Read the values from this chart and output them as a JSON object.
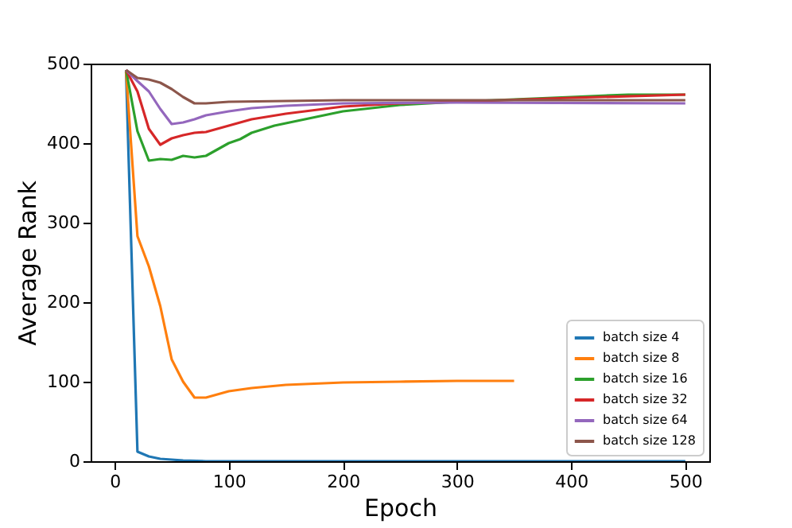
{
  "chart_data": {
    "type": "line",
    "xlabel": "Epoch",
    "ylabel": "Average Rank",
    "xlim": [
      -21,
      521
    ],
    "ylim": [
      0,
      500
    ],
    "xticks": [
      0,
      100,
      200,
      300,
      400,
      500
    ],
    "yticks": [
      0,
      100,
      200,
      300,
      400,
      500
    ],
    "grid": false,
    "legend": "bottom right",
    "series": [
      {
        "name": "batch size 4",
        "color": "#1f77b4",
        "x": [
          10,
          20,
          30,
          40,
          50,
          60,
          80,
          100,
          200,
          300,
          400,
          500
        ],
        "values": [
          490,
          12,
          6,
          3,
          2,
          1,
          0,
          0,
          0,
          0,
          0,
          0
        ]
      },
      {
        "name": "batch size 8",
        "color": "#ff7f0e",
        "x": [
          10,
          20,
          30,
          40,
          50,
          60,
          70,
          80,
          90,
          100,
          120,
          150,
          200,
          250,
          300,
          350
        ],
        "values": [
          490,
          283,
          245,
          195,
          128,
          100,
          80,
          80,
          84,
          88,
          92,
          96,
          99,
          100,
          101,
          101
        ]
      },
      {
        "name": "batch size 16",
        "color": "#2ca02c",
        "x": [
          10,
          20,
          30,
          40,
          50,
          60,
          70,
          80,
          90,
          100,
          110,
          120,
          140,
          160,
          200,
          250,
          300,
          350,
          400,
          450,
          500
        ],
        "values": [
          492,
          415,
          378,
          380,
          379,
          384,
          382,
          384,
          392,
          400,
          405,
          413,
          422,
          428,
          440,
          448,
          452,
          455,
          458,
          461,
          461
        ]
      },
      {
        "name": "batch size 32",
        "color": "#d62728",
        "x": [
          10,
          20,
          30,
          40,
          50,
          60,
          70,
          80,
          100,
          120,
          150,
          200,
          250,
          300,
          400,
          500
        ],
        "values": [
          492,
          465,
          418,
          398,
          406,
          410,
          413,
          414,
          422,
          430,
          437,
          446,
          450,
          452,
          457,
          461
        ]
      },
      {
        "name": "batch size 64",
        "color": "#9467bd",
        "x": [
          10,
          20,
          30,
          40,
          50,
          60,
          70,
          80,
          100,
          120,
          150,
          200,
          300,
          500
        ],
        "values": [
          492,
          478,
          465,
          443,
          424,
          426,
          430,
          435,
          440,
          444,
          447,
          450,
          451,
          450
        ]
      },
      {
        "name": "batch size 128",
        "color": "#8c564b",
        "x": [
          10,
          20,
          30,
          40,
          50,
          60,
          70,
          80,
          100,
          150,
          200,
          300,
          500
        ],
        "values": [
          492,
          482,
          480,
          476,
          468,
          458,
          450,
          450,
          452,
          453,
          454,
          454,
          454
        ]
      }
    ]
  }
}
